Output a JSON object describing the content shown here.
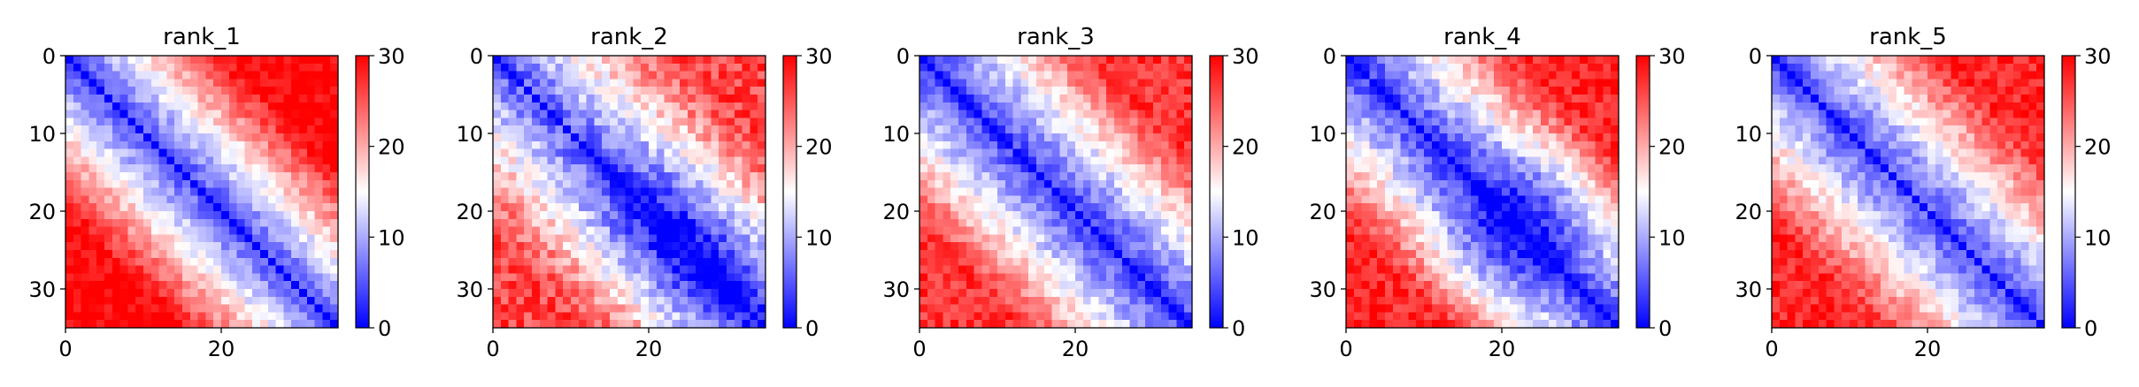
{
  "chart_data": [
    {
      "type": "heatmap",
      "title": "rank_1",
      "size": 35,
      "seed": 11,
      "x_ticks": [
        "0",
        "20"
      ],
      "y_ticks": [
        "0",
        "10",
        "20",
        "30"
      ],
      "colorbar": {
        "min": 0,
        "max": 30,
        "ticks": [
          "0",
          "10",
          "20",
          "30"
        ]
      },
      "colormap": "bwr",
      "base": 4,
      "slope": 1.25,
      "cap": 30,
      "noise": 2.5,
      "bumps": []
    },
    {
      "type": "heatmap",
      "title": "rank_2",
      "size": 35,
      "seed": 23,
      "x_ticks": [
        "0",
        "20"
      ],
      "y_ticks": [
        "0",
        "10",
        "20",
        "30"
      ],
      "colorbar": {
        "min": 0,
        "max": 30,
        "ticks": [
          "0",
          "10",
          "20",
          "30"
        ]
      },
      "colormap": "bwr",
      "base": 5,
      "slope": 0.95,
      "cap": 26,
      "noise": 3.5,
      "bumps": [
        {
          "cx": 21,
          "cy": 23,
          "amp": -6,
          "r": 7
        },
        {
          "cx": 30,
          "cy": 30,
          "amp": -4,
          "r": 6
        }
      ]
    },
    {
      "type": "heatmap",
      "title": "rank_3",
      "size": 35,
      "seed": 37,
      "x_ticks": [
        "0",
        "20"
      ],
      "y_ticks": [
        "0",
        "10",
        "20",
        "30"
      ],
      "colorbar": {
        "min": 0,
        "max": 30,
        "ticks": [
          "0",
          "10",
          "20",
          "30"
        ]
      },
      "colormap": "bwr",
      "base": 3,
      "slope": 1.1,
      "cap": 27,
      "noise": 2.8,
      "bumps": [
        {
          "cx": 9,
          "cy": 30,
          "amp": -5,
          "r": 5
        }
      ]
    },
    {
      "type": "heatmap",
      "title": "rank_4",
      "size": 35,
      "seed": 53,
      "x_ticks": [
        "0",
        "20"
      ],
      "y_ticks": [
        "0",
        "10",
        "20",
        "30"
      ],
      "colorbar": {
        "min": 0,
        "max": 30,
        "ticks": [
          "0",
          "10",
          "20",
          "30"
        ]
      },
      "colormap": "bwr",
      "base": 3,
      "slope": 1.15,
      "cap": 28,
      "noise": 3,
      "bumps": [
        {
          "cx": 15,
          "cy": 28,
          "amp": -7,
          "r": 6
        },
        {
          "cx": 25,
          "cy": 17,
          "amp": -5,
          "r": 5
        }
      ]
    },
    {
      "type": "heatmap",
      "title": "rank_5",
      "size": 35,
      "seed": 71,
      "x_ticks": [
        "0",
        "20"
      ],
      "y_ticks": [
        "0",
        "10",
        "20",
        "30"
      ],
      "colorbar": {
        "min": 0,
        "max": 30,
        "ticks": [
          "0",
          "10",
          "20",
          "30"
        ]
      },
      "colormap": "bwr",
      "base": 4,
      "slope": 1.1,
      "cap": 28,
      "noise": 2.8,
      "bumps": [
        {
          "cx": 8,
          "cy": 27,
          "amp": 3,
          "r": 6
        }
      ]
    }
  ]
}
